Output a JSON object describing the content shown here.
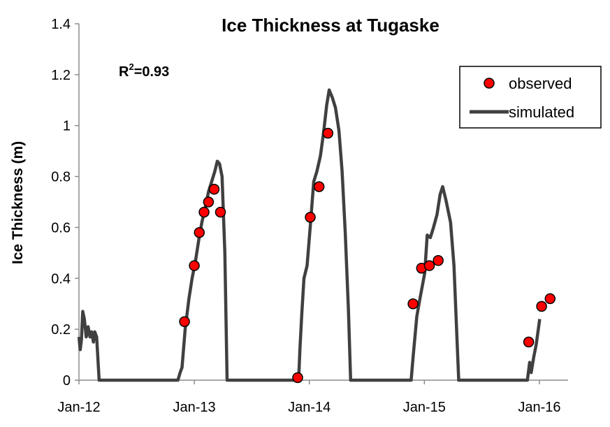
{
  "chart_data": {
    "type": "scatter",
    "title": "Ice Thickness at Tugaske",
    "xlabel": "",
    "ylabel": "Ice Thickness (m)",
    "annotation": {
      "base": "R",
      "sup": "2",
      "rest": "=0.93"
    },
    "x_ticks": [
      "Jan-12",
      "Jan-13",
      "Jan-14",
      "Jan-15",
      "Jan-16"
    ],
    "xlim": [
      "2012-01-01",
      "2016-04-01"
    ],
    "ylim": [
      0,
      1.4
    ],
    "y_ticks": [
      "0",
      "0.2",
      "0.4",
      "0.6",
      "0.8",
      "1",
      "1.2",
      "1.4"
    ],
    "grid": false,
    "legend_position": "top-right",
    "series": [
      {
        "name": "observed",
        "kind": "scatter",
        "color": "#ff0000",
        "points": [
          [
            "2012-12-01",
            0.23
          ],
          [
            "2013-01-01",
            0.45
          ],
          [
            "2013-01-17",
            0.58
          ],
          [
            "2013-02-01",
            0.66
          ],
          [
            "2013-02-15",
            0.7
          ],
          [
            "2013-03-05",
            0.75
          ],
          [
            "2013-03-25",
            0.66
          ],
          [
            "2013-11-25",
            0.01
          ],
          [
            "2014-01-04",
            0.64
          ],
          [
            "2014-02-01",
            0.76
          ],
          [
            "2014-03-01",
            0.97
          ],
          [
            "2014-11-26",
            0.3
          ],
          [
            "2014-12-23",
            0.44
          ],
          [
            "2015-01-17",
            0.45
          ],
          [
            "2015-02-14",
            0.47
          ],
          [
            "2015-11-28",
            0.15
          ],
          [
            "2016-01-08",
            0.29
          ],
          [
            "2016-02-04",
            0.32
          ]
        ]
      },
      {
        "name": "simulated",
        "kind": "line",
        "color": "#404040",
        "points": [
          [
            "2012-01-01",
            0.17
          ],
          [
            "2012-01-05",
            0.12
          ],
          [
            "2012-01-09",
            0.16
          ],
          [
            "2012-01-13",
            0.27
          ],
          [
            "2012-01-18",
            0.24
          ],
          [
            "2012-01-24",
            0.17
          ],
          [
            "2012-01-30",
            0.21
          ],
          [
            "2012-02-05",
            0.17
          ],
          [
            "2012-02-10",
            0.19
          ],
          [
            "2012-02-16",
            0.15
          ],
          [
            "2012-02-20",
            0.19
          ],
          [
            "2012-02-26",
            0.17
          ],
          [
            "2012-03-05",
            0.0
          ],
          [
            "2012-11-10",
            0.0
          ],
          [
            "2012-11-17",
            0.03
          ],
          [
            "2012-11-23",
            0.05
          ],
          [
            "2012-12-03",
            0.2
          ],
          [
            "2012-12-15",
            0.32
          ],
          [
            "2012-12-25",
            0.4
          ],
          [
            "2013-01-05",
            0.47
          ],
          [
            "2013-01-15",
            0.55
          ],
          [
            "2013-01-25",
            0.62
          ],
          [
            "2013-02-05",
            0.68
          ],
          [
            "2013-02-15",
            0.74
          ],
          [
            "2013-02-25",
            0.78
          ],
          [
            "2013-03-07",
            0.82
          ],
          [
            "2013-03-15",
            0.86
          ],
          [
            "2013-03-22",
            0.85
          ],
          [
            "2013-03-30",
            0.8
          ],
          [
            "2013-04-08",
            0.5
          ],
          [
            "2013-04-15",
            0.0
          ],
          [
            "2013-11-28",
            0.0
          ],
          [
            "2013-12-02",
            0.12
          ],
          [
            "2013-12-08",
            0.26
          ],
          [
            "2013-12-15",
            0.4
          ],
          [
            "2013-12-25",
            0.45
          ],
          [
            "2014-01-05",
            0.62
          ],
          [
            "2014-01-15",
            0.78
          ],
          [
            "2014-01-25",
            0.82
          ],
          [
            "2014-02-05",
            0.88
          ],
          [
            "2014-02-15",
            0.97
          ],
          [
            "2014-02-25",
            1.08
          ],
          [
            "2014-03-05",
            1.14
          ],
          [
            "2014-03-15",
            1.11
          ],
          [
            "2014-03-25",
            1.07
          ],
          [
            "2014-04-05",
            0.98
          ],
          [
            "2014-04-15",
            0.82
          ],
          [
            "2014-04-25",
            0.58
          ],
          [
            "2014-05-05",
            0.28
          ],
          [
            "2014-05-12",
            0.0
          ],
          [
            "2014-11-20",
            0.0
          ],
          [
            "2014-11-27",
            0.1
          ],
          [
            "2014-12-08",
            0.25
          ],
          [
            "2014-12-18",
            0.32
          ],
          [
            "2015-01-02",
            0.42
          ],
          [
            "2015-01-10",
            0.57
          ],
          [
            "2015-01-20",
            0.56
          ],
          [
            "2015-01-30",
            0.6
          ],
          [
            "2015-02-10",
            0.65
          ],
          [
            "2015-02-20",
            0.73
          ],
          [
            "2015-02-28",
            0.76
          ],
          [
            "2015-03-10",
            0.71
          ],
          [
            "2015-03-25",
            0.62
          ],
          [
            "2015-04-05",
            0.45
          ],
          [
            "2015-04-15",
            0.15
          ],
          [
            "2015-04-20",
            0.0
          ],
          [
            "2015-11-24",
            0.0
          ],
          [
            "2015-12-01",
            0.07
          ],
          [
            "2015-12-06",
            0.03
          ],
          [
            "2015-12-14",
            0.09
          ],
          [
            "2015-12-22",
            0.14
          ],
          [
            "2016-01-02",
            0.24
          ]
        ]
      }
    ]
  }
}
